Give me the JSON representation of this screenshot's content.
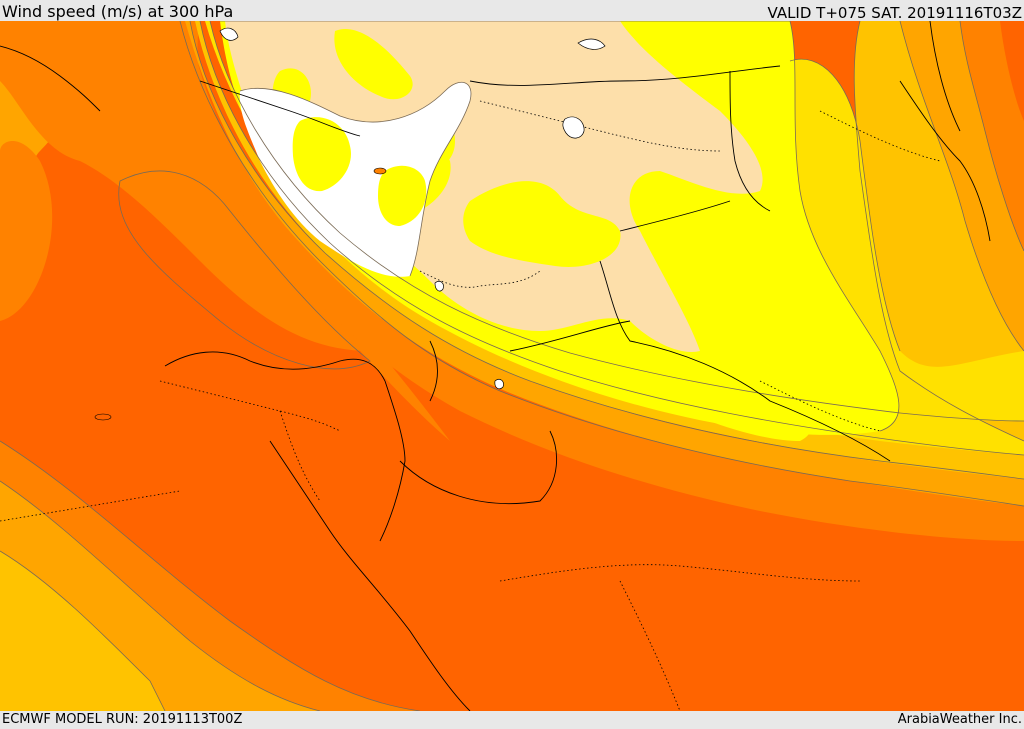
{
  "header": {
    "title": "Wind speed (m/s) at 300 hPa",
    "valid_time": "VALID T+075 SAT. 20191116T03Z"
  },
  "footer": {
    "model_run": "ECMWF MODEL RUN: 20191113T00Z",
    "credit": "ArabiaWeather Inc."
  },
  "colors": {
    "white_band": "#ffffff",
    "tan_band": "#fddfaa",
    "yellow_band": "#ffff00",
    "light_gold_band": "#ffe100",
    "gold_band": "#ffc300",
    "amber_band": "#ffa500",
    "orange_band": "#ff8200",
    "dark_orange_band": "#ff6400",
    "contour_line": "#7a6a55",
    "border_line": "#000000"
  }
}
